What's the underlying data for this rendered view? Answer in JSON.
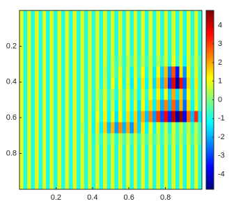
{
  "chart_data": {
    "type": "heatmap",
    "xlim": [
      0,
      1
    ],
    "ylim": [
      0,
      1
    ],
    "y_reversed": true,
    "xticks": [
      0.2,
      0.4,
      0.6,
      0.8
    ],
    "yticks": [
      0.2,
      0.4,
      0.6,
      0.8
    ],
    "clim": [
      -4.8,
      4.8
    ],
    "cticks": [
      -4,
      -3,
      -2,
      -1,
      0,
      1,
      2,
      3,
      4
    ],
    "colormap": "jet",
    "z": [
      [
        0.9,
        -0.9,
        0.9,
        -0.9,
        0.9,
        -0.9,
        0.9,
        -0.9,
        0.9,
        -0.9,
        0.9,
        -0.9,
        0.9,
        -0.9,
        0.9,
        -0.9,
        0.9,
        -0.9,
        0.9,
        -0.9,
        0.9,
        -0.9,
        0.9,
        -0.9,
        0.9,
        -0.9,
        0.9,
        -0.9,
        0.9,
        -0.9,
        0.9,
        -0.9,
        0.9,
        -0.9,
        0.9,
        -0.9,
        0.9,
        -0.9,
        0.9,
        -0.9,
        0.9,
        -0.9,
        0.9,
        -0.9,
        0.9,
        -0.9,
        0.9,
        -0.9
      ],
      [
        0.9,
        -0.9,
        0.9,
        -0.9,
        0.9,
        -0.9,
        0.9,
        -0.9,
        0.9,
        -0.9,
        0.9,
        -0.9,
        0.9,
        -0.9,
        0.9,
        -0.9,
        0.9,
        -0.9,
        0.9,
        -0.9,
        0.9,
        -0.9,
        0.9,
        -0.9,
        0.9,
        -0.9,
        0.9,
        -0.9,
        0.9,
        -0.9,
        0.9,
        -0.9,
        0.9,
        -0.9,
        0.9,
        -0.9,
        0.9,
        -0.9,
        0.9,
        -0.9,
        0.9,
        -0.9,
        0.9,
        -0.9,
        0.9,
        -0.9,
        0.9,
        -0.9
      ],
      [
        0.9,
        -0.9,
        0.9,
        -0.9,
        0.9,
        -0.9,
        0.9,
        -0.9,
        0.9,
        -0.9,
        0.9,
        -0.9,
        0.9,
        -0.9,
        0.9,
        -0.9,
        0.9,
        -0.9,
        0.9,
        -0.9,
        0.9,
        -0.9,
        0.9,
        -0.9,
        0.9,
        -0.9,
        0.9,
        -0.9,
        0.9,
        -0.9,
        0.9,
        -0.9,
        0.9,
        -0.9,
        0.9,
        -0.9,
        0.9,
        -0.9,
        0.9,
        -0.9,
        0.9,
        -0.9,
        0.9,
        -0.9,
        0.9,
        -0.9,
        0.9,
        -0.9
      ],
      [
        0.9,
        -0.9,
        0.9,
        -0.9,
        0.9,
        -0.9,
        0.9,
        -0.9,
        0.9,
        -0.9,
        0.9,
        -0.9,
        0.9,
        -0.9,
        0.9,
        -0.9,
        0.9,
        -0.9,
        0.9,
        -0.9,
        0.9,
        -0.9,
        0.9,
        -0.9,
        0.9,
        -0.9,
        0.9,
        -0.9,
        0.9,
        -0.9,
        0.9,
        -0.9,
        0.9,
        -0.9,
        0.9,
        -0.9,
        0.9,
        -0.9,
        0.9,
        -0.9,
        0.9,
        -0.9,
        0.9,
        -0.9,
        0.9,
        -0.9,
        0.9,
        -0.9
      ],
      [
        0.9,
        -0.9,
        0.9,
        -0.9,
        0.9,
        -0.9,
        0.9,
        -0.9,
        0.9,
        -0.9,
        0.9,
        -0.9,
        0.9,
        -0.9,
        0.9,
        -0.9,
        0.9,
        -0.9,
        0.9,
        -0.9,
        0.9,
        -0.9,
        0.9,
        -0.9,
        0.7,
        -0.6,
        0.5,
        -0.8,
        0.6,
        -0.5,
        0.8,
        -0.7,
        0.6,
        -0.6,
        0.7,
        -0.8,
        0.5,
        -0.6,
        0.8,
        -0.9,
        1.1,
        -0.7,
        0.9,
        -1.2,
        0.8,
        -0.6,
        0.7,
        -0.5
      ],
      [
        0.9,
        -0.9,
        0.9,
        -0.9,
        0.9,
        -0.9,
        0.9,
        -0.9,
        0.9,
        -0.9,
        0.9,
        -0.9,
        0.9,
        -0.9,
        0.9,
        -0.9,
        0.9,
        -0.9,
        0.9,
        -0.9,
        0.9,
        -0.9,
        0.6,
        -0.9,
        0.8,
        -0.6,
        1.0,
        -0.8,
        0.7,
        -1.1,
        0.9,
        -0.7,
        1.2,
        -0.9,
        0.8,
        -1.3,
        1.1,
        -1.6,
        1.8,
        -2.5,
        2.9,
        -3.4,
        1.5,
        -2.2,
        1.3,
        -0.8,
        0.9,
        -0.6
      ],
      [
        0.9,
        -0.9,
        0.9,
        -0.9,
        0.9,
        -0.9,
        0.9,
        -0.9,
        0.9,
        -0.9,
        0.9,
        -0.9,
        0.9,
        -0.9,
        0.9,
        -0.9,
        0.9,
        -0.9,
        0.9,
        -0.9,
        0.9,
        -0.9,
        0.7,
        -1.0,
        1.1,
        -0.8,
        1.2,
        -1.0,
        0.9,
        -1.3,
        1.0,
        -1.1,
        1.4,
        -1.2,
        1.0,
        -1.5,
        1.6,
        -1.9,
        2.2,
        -3.1,
        3.8,
        -4.6,
        3.5,
        -2.8,
        1.6,
        -1.1,
        1.4,
        -0.7
      ],
      [
        0.9,
        -0.9,
        0.9,
        -0.9,
        0.9,
        -0.9,
        0.9,
        -0.9,
        0.9,
        -0.9,
        0.9,
        -0.9,
        0.9,
        -0.9,
        0.9,
        -0.9,
        0.9,
        -0.9,
        0.9,
        -0.9,
        0.6,
        -0.5,
        0.9,
        -0.7,
        0.5,
        -0.9,
        0.8,
        -0.6,
        1.0,
        -0.8,
        0.6,
        -1.1,
        0.9,
        -0.7,
        1.2,
        -1.0,
        1.3,
        -1.4,
        1.1,
        -1.6,
        2.0,
        -1.5,
        1.7,
        -2.1,
        1.2,
        -0.9,
        0.8,
        -0.6
      ],
      [
        0.9,
        -0.9,
        0.9,
        -0.9,
        0.9,
        -0.9,
        0.9,
        -0.9,
        0.9,
        -0.9,
        0.9,
        -0.9,
        0.9,
        -0.9,
        0.9,
        -0.9,
        0.9,
        -0.9,
        0.9,
        -0.9,
        0.9,
        -0.8,
        1.1,
        -1.0,
        0.7,
        -1.2,
        1.0,
        -0.9,
        1.3,
        -1.1,
        0.9,
        -1.4,
        1.2,
        -1.0,
        1.6,
        -1.3,
        1.8,
        -2.0,
        2.4,
        -1.9,
        2.7,
        -2.3,
        1.9,
        -2.6,
        1.5,
        -1.2,
        0.9,
        -0.7
      ],
      [
        0.9,
        -0.9,
        0.9,
        -0.9,
        0.9,
        -0.9,
        0.9,
        -0.9,
        0.9,
        -0.9,
        0.9,
        -0.9,
        0.9,
        -0.9,
        0.9,
        -0.9,
        0.9,
        -0.9,
        0.9,
        -1.1,
        1.2,
        -0.9,
        1.3,
        -1.2,
        1.0,
        -1.4,
        1.2,
        -1.1,
        1.5,
        -1.3,
        1.6,
        -1.7,
        1.9,
        -1.8,
        2.4,
        -2.2,
        3.1,
        -2.9,
        3.6,
        -3.3,
        4.2,
        -4.4,
        4.6,
        -3.8,
        2.6,
        -1.9,
        3.2,
        -1.4
      ],
      [
        0.9,
        -0.9,
        0.9,
        -0.9,
        0.9,
        -0.9,
        0.9,
        -0.9,
        0.9,
        -0.9,
        0.9,
        -0.9,
        0.9,
        -0.9,
        0.9,
        -0.9,
        0.7,
        -0.9,
        1.0,
        -1.2,
        1.4,
        -1.3,
        1.6,
        -1.8,
        1.9,
        -2.1,
        2.3,
        -1.9,
        2.0,
        -2.2,
        1.8,
        -1.6,
        1.4,
        -1.2,
        1.1,
        -1.0,
        0.9,
        -0.8,
        0.7,
        -0.9,
        0.8,
        -0.6,
        0.7,
        -0.5,
        0.6,
        -0.7,
        0.5,
        -0.6
      ],
      [
        0.9,
        -0.9,
        0.9,
        -0.9,
        0.9,
        -0.9,
        0.9,
        -0.9,
        0.9,
        -0.9,
        0.9,
        -0.9,
        0.9,
        -0.9,
        0.9,
        -0.9,
        0.9,
        -0.9,
        0.9,
        -0.9,
        0.6,
        -0.7,
        0.8,
        -0.6,
        0.7,
        -0.8,
        0.6,
        -0.5,
        0.7,
        -0.6,
        0.8,
        -0.7,
        0.6,
        -0.5,
        0.7,
        -0.6,
        0.5,
        -0.7,
        0.6,
        -0.5,
        0.7,
        -0.6,
        0.5,
        -0.6,
        0.7,
        -0.5,
        0.6,
        -0.5
      ],
      [
        0.9,
        -0.9,
        0.9,
        -0.9,
        0.9,
        -0.9,
        0.9,
        -0.9,
        0.9,
        -0.9,
        0.9,
        -0.9,
        0.9,
        -0.9,
        0.9,
        -0.9,
        0.9,
        -0.9,
        0.9,
        -0.9,
        0.9,
        -0.9,
        0.9,
        -0.9,
        0.9,
        -0.9,
        0.9,
        -0.9,
        0.9,
        -0.9,
        0.9,
        -0.9,
        0.9,
        -0.9,
        0.9,
        -0.9,
        0.9,
        -0.9,
        0.9,
        -0.9,
        0.9,
        -0.9,
        0.9,
        -0.9,
        0.9,
        -0.9,
        0.9,
        -0.9
      ],
      [
        0.9,
        -0.9,
        0.9,
        -0.9,
        0.9,
        -0.9,
        0.9,
        -0.9,
        0.9,
        -0.9,
        0.9,
        -0.9,
        0.9,
        -0.9,
        0.9,
        -0.9,
        0.9,
        -0.9,
        0.9,
        -0.9,
        0.9,
        -0.9,
        0.9,
        -0.9,
        0.9,
        -0.9,
        0.9,
        -0.9,
        0.9,
        -0.9,
        0.9,
        -0.9,
        0.9,
        -0.9,
        0.9,
        -0.9,
        0.9,
        -0.9,
        0.9,
        -0.9,
        0.9,
        -0.9,
        0.9,
        -0.9,
        0.9,
        -0.9,
        0.9,
        -0.9
      ],
      [
        0.9,
        -0.9,
        0.9,
        -0.9,
        0.9,
        -0.9,
        0.9,
        -0.9,
        0.9,
        -0.9,
        0.9,
        -0.9,
        0.9,
        -0.9,
        0.9,
        -0.9,
        0.9,
        -0.9,
        0.9,
        -0.9,
        0.9,
        -0.9,
        0.9,
        -0.9,
        0.9,
        -0.9,
        0.9,
        -0.9,
        0.9,
        -0.9,
        0.9,
        -0.9,
        0.9,
        -0.9,
        0.9,
        -0.9,
        0.9,
        -0.9,
        0.9,
        -0.9,
        0.9,
        -0.9,
        0.9,
        -0.9,
        0.9,
        -0.9,
        0.9,
        -0.9
      ],
      [
        0.9,
        -0.9,
        0.9,
        -0.9,
        0.9,
        -0.9,
        0.9,
        -0.9,
        0.9,
        -0.9,
        0.9,
        -0.9,
        0.9,
        -0.9,
        0.9,
        -0.9,
        0.9,
        -0.9,
        0.9,
        -0.9,
        0.9,
        -0.9,
        0.9,
        -0.9,
        0.9,
        -0.9,
        0.9,
        -0.9,
        0.9,
        -0.9,
        0.9,
        -0.9,
        0.9,
        -0.9,
        0.9,
        -0.9,
        0.9,
        -0.9,
        0.9,
        -0.9,
        0.9,
        -0.9,
        0.9,
        -0.9,
        0.9,
        -0.9,
        0.9,
        -0.9
      ]
    ]
  }
}
